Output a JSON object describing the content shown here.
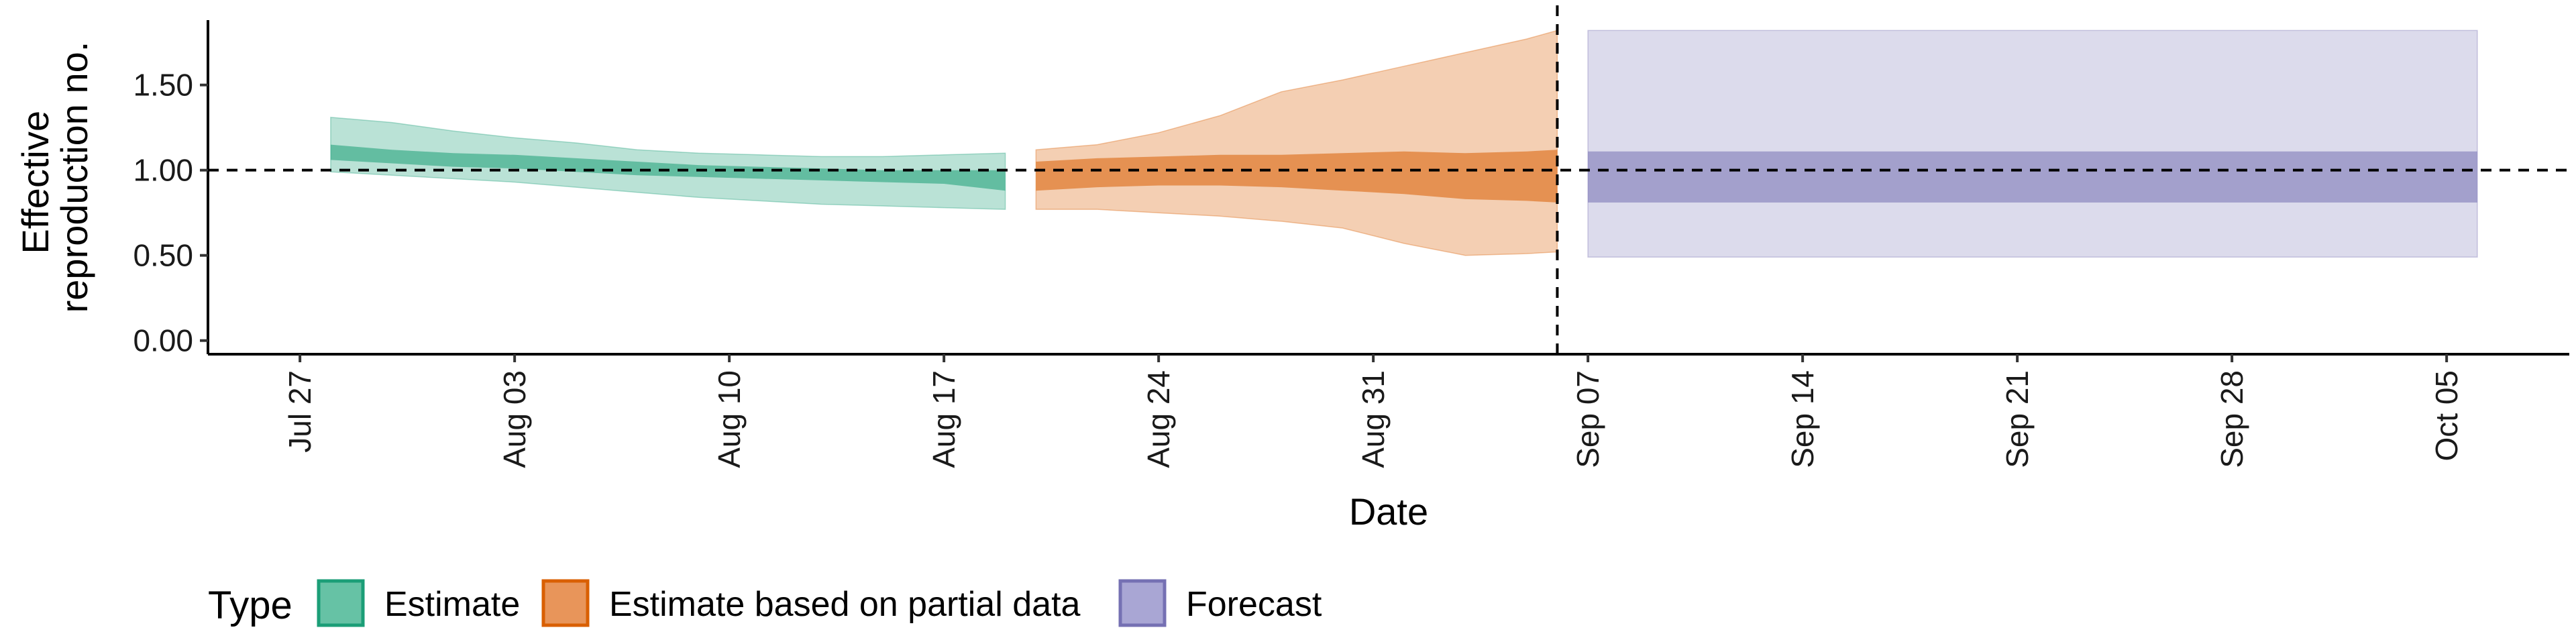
{
  "chart_data": {
    "type": "area",
    "xlabel": "Date",
    "ylabel_lines": [
      "Effective",
      "reproduction no."
    ],
    "x_ticks": [
      "Jul 27",
      "Aug 03",
      "Aug 10",
      "Aug 17",
      "Aug 24",
      "Aug 31",
      "Sep 07",
      "Sep 14",
      "Sep 21",
      "Sep 28",
      "Oct 05"
    ],
    "x_range": [
      "2020-07-24",
      "2020-10-09"
    ],
    "y_ticks": [
      "0.00",
      "0.50",
      "1.00",
      "1.50"
    ],
    "ylim": [
      -0.08,
      1.92
    ],
    "reference_line_y": 1.0,
    "vertical_line_date": "2020-09-06",
    "grid": false,
    "legend": {
      "title": "Type",
      "position": "bottom-left",
      "items": [
        {
          "label": "Estimate",
          "fill": "#66c2a5",
          "border": "#1b9e77"
        },
        {
          "label": "Estimate based on partial data",
          "fill": "#e8955a",
          "border": "#d95f02"
        },
        {
          "label": "Forecast",
          "fill": "#a9a6d4",
          "border": "#7570b3"
        }
      ]
    },
    "series": [
      {
        "name": "Estimate",
        "color": "#1b9e77",
        "x": [
          "2020-07-28",
          "2020-07-30",
          "2020-08-01",
          "2020-08-03",
          "2020-08-05",
          "2020-08-07",
          "2020-08-09",
          "2020-08-11",
          "2020-08-13",
          "2020-08-15",
          "2020-08-17",
          "2020-08-19"
        ],
        "outer_upper": [
          1.31,
          1.28,
          1.23,
          1.19,
          1.16,
          1.12,
          1.1,
          1.09,
          1.08,
          1.08,
          1.09,
          1.1
        ],
        "outer_lower": [
          0.99,
          0.97,
          0.95,
          0.93,
          0.9,
          0.87,
          0.84,
          0.82,
          0.8,
          0.79,
          0.78,
          0.77
        ],
        "inner_upper": [
          1.15,
          1.12,
          1.1,
          1.09,
          1.07,
          1.05,
          1.03,
          1.02,
          1.01,
          1.0,
          1.0,
          1.0
        ],
        "inner_lower": [
          1.06,
          1.04,
          1.02,
          1.01,
          0.99,
          0.97,
          0.96,
          0.95,
          0.94,
          0.93,
          0.92,
          0.88
        ]
      },
      {
        "name": "Estimate based on partial data",
        "color": "#d95f02",
        "x": [
          "2020-08-20",
          "2020-08-22",
          "2020-08-24",
          "2020-08-26",
          "2020-08-28",
          "2020-08-30",
          "2020-09-01",
          "2020-09-03",
          "2020-09-05",
          "2020-09-06"
        ],
        "outer_upper": [
          1.12,
          1.15,
          1.22,
          1.32,
          1.46,
          1.53,
          1.61,
          1.69,
          1.77,
          1.82
        ],
        "outer_lower": [
          0.77,
          0.77,
          0.75,
          0.73,
          0.7,
          0.66,
          0.57,
          0.5,
          0.51,
          0.52
        ],
        "inner_upper": [
          1.05,
          1.07,
          1.08,
          1.09,
          1.09,
          1.1,
          1.11,
          1.1,
          1.11,
          1.12
        ],
        "inner_lower": [
          0.88,
          0.9,
          0.91,
          0.91,
          0.9,
          0.88,
          0.86,
          0.83,
          0.82,
          0.81
        ]
      },
      {
        "name": "Forecast",
        "color": "#7570b3",
        "x": [
          "2020-09-07",
          "2020-10-06"
        ],
        "outer_upper": [
          1.82,
          1.82
        ],
        "outer_lower": [
          0.49,
          0.49
        ],
        "inner_upper": [
          1.11,
          1.11
        ],
        "inner_lower": [
          0.81,
          0.81
        ]
      }
    ]
  }
}
